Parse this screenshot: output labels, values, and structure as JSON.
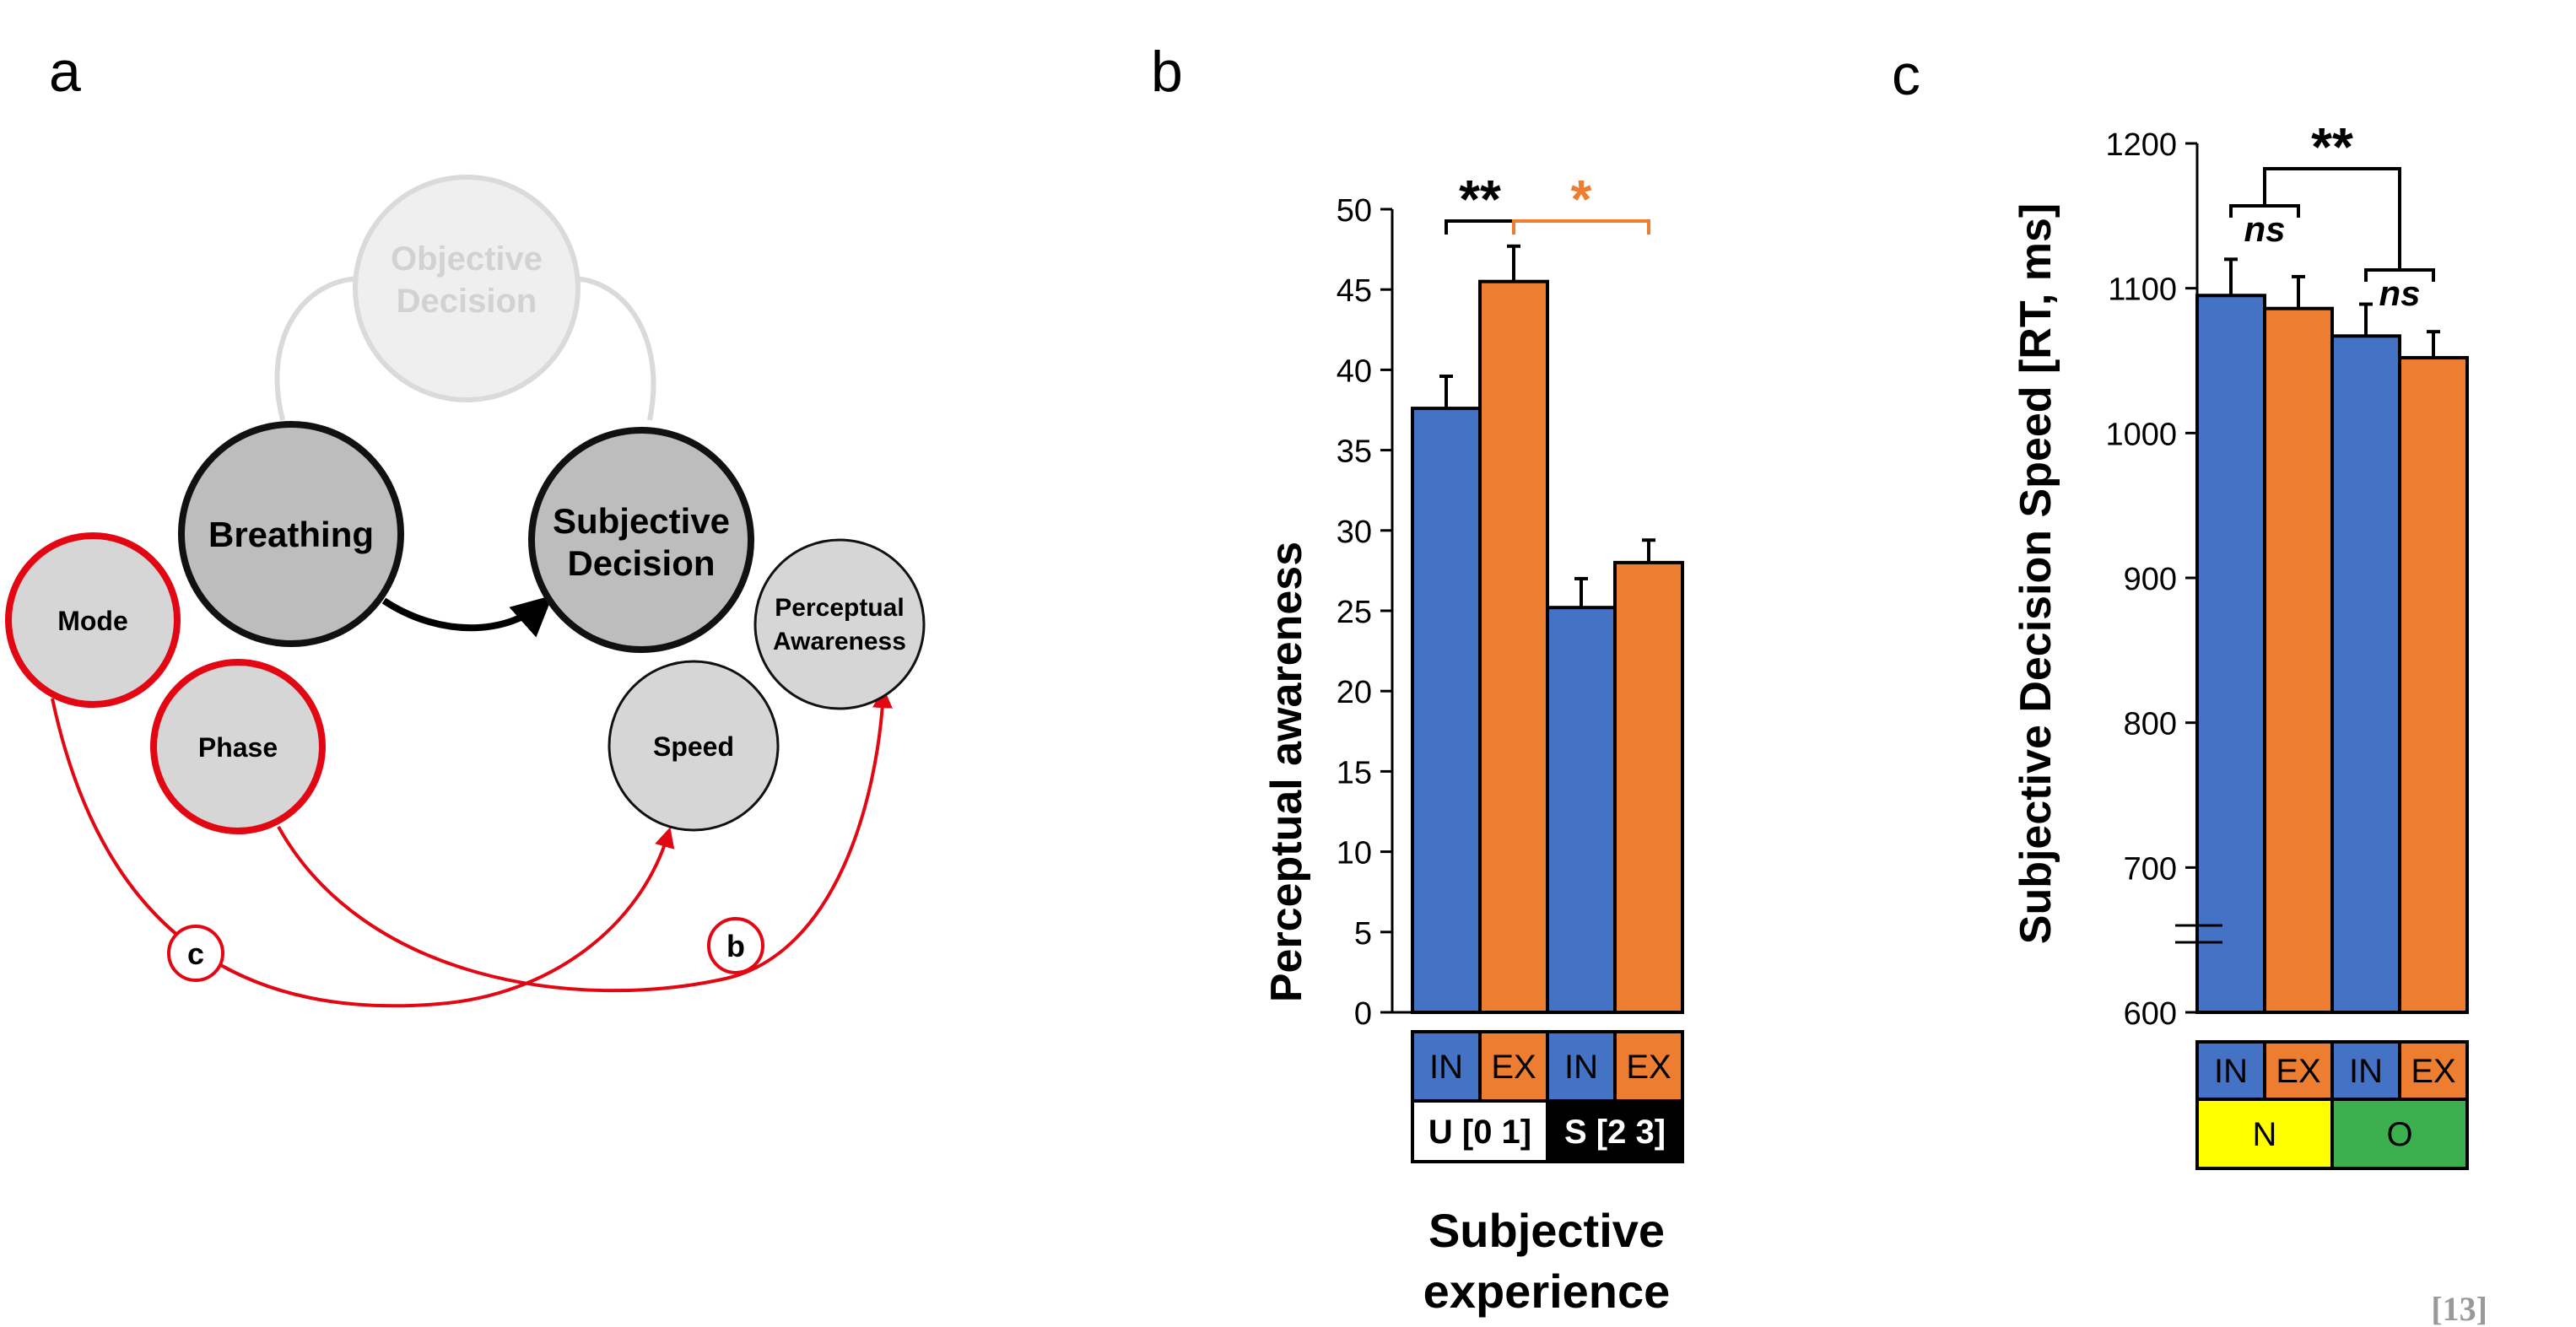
{
  "panel_labels": {
    "a": "a",
    "b": "b",
    "c": "c"
  },
  "page_number": "[13]",
  "colors": {
    "blue": "#4472C4",
    "orange": "#ED7D31",
    "yellow": "#FFFF00",
    "green": "#3CB04E",
    "red": "#E30613",
    "node_gray": "#D6D6D6",
    "node_dark": "#BDBDBD",
    "faded": "#E6E6E6"
  },
  "diagram": {
    "objective_decision": [
      "Objective",
      "Decision"
    ],
    "breathing": "Breathing",
    "subjective_decision": [
      "Subjective",
      "Decision"
    ],
    "mode": "Mode",
    "phase": "Phase",
    "speed": "Speed",
    "perceptual_awareness": [
      "Perceptual",
      "Awareness"
    ],
    "marker_c": "c",
    "marker_b": "b"
  },
  "chart_data": [
    {
      "type": "bar",
      "ylabel": "Perceptual awareness",
      "xlabel": "Subjective experience",
      "xlabel_lines": [
        "Subjective",
        "experience"
      ],
      "ylim": [
        0,
        50
      ],
      "yticks": [
        0,
        5,
        10,
        15,
        20,
        25,
        30,
        35,
        40,
        45,
        50
      ],
      "grid": false,
      "categories": [
        "IN",
        "EX",
        "IN",
        "EX"
      ],
      "groups": [
        "U [0 1]",
        "S [2 3]"
      ],
      "values": [
        37.6,
        45.5,
        25.2,
        28.0
      ],
      "errors": [
        2.0,
        2.2,
        1.8,
        1.4
      ],
      "bar_colors": [
        "blue",
        "orange",
        "blue",
        "orange"
      ],
      "significance": [
        {
          "label": "**",
          "between": [
            0,
            1
          ],
          "color": "black"
        },
        {
          "label": "*",
          "between": [
            1,
            3
          ],
          "color": "orange"
        }
      ]
    },
    {
      "type": "bar",
      "ylabel": "Subjective Decision Speed [RT, ms]",
      "ylim": [
        600,
        1200
      ],
      "yticks": [
        600,
        700,
        800,
        900,
        1000,
        1100,
        1200
      ],
      "axis_break": true,
      "grid": false,
      "categories": [
        "IN",
        "EX",
        "IN",
        "EX"
      ],
      "groups": [
        "N",
        "O"
      ],
      "values": [
        1095,
        1086,
        1067,
        1052
      ],
      "errors": [
        25,
        22,
        22,
        18
      ],
      "bar_colors": [
        "blue",
        "orange",
        "blue",
        "orange"
      ],
      "significance": [
        {
          "label": "ns",
          "between": [
            0,
            1
          ]
        },
        {
          "label": "ns",
          "between": [
            2,
            3
          ]
        },
        {
          "label": "**",
          "between": [
            "N",
            "O"
          ]
        }
      ]
    }
  ]
}
